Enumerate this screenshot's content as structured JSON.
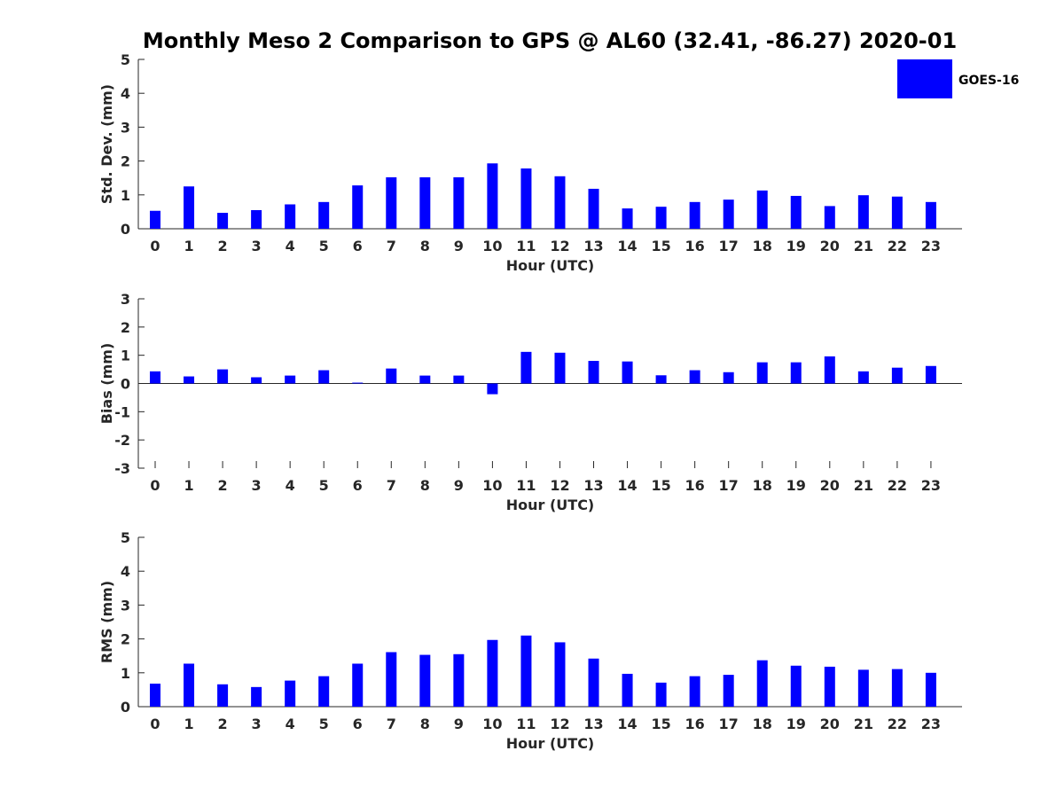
{
  "chart_data": {
    "title": "Monthly Meso 2 Comparison to GPS @ AL60 (32.41, -86.27) 2020-01",
    "legend": {
      "label": "GOES-16",
      "color": "#0000ff",
      "position": "top-right"
    },
    "panels": [
      {
        "type": "bar",
        "ylabel": "Std. Dev. (mm)",
        "xlabel": "Hour (UTC)",
        "ylim": [
          0,
          5
        ],
        "yticks": [
          0,
          1,
          2,
          3,
          4,
          5
        ],
        "categories": [
          "0",
          "1",
          "2",
          "3",
          "4",
          "5",
          "6",
          "7",
          "8",
          "9",
          "10",
          "11",
          "12",
          "13",
          "14",
          "15",
          "16",
          "17",
          "18",
          "19",
          "20",
          "21",
          "22",
          "23"
        ],
        "series": [
          {
            "name": "GOES-16",
            "values": [
              0.53,
              1.25,
              0.47,
              0.55,
              0.72,
              0.79,
              1.28,
              1.52,
              1.52,
              1.52,
              1.93,
              1.78,
              1.55,
              1.18,
              0.6,
              0.65,
              0.79,
              0.86,
              1.13,
              0.97,
              0.67,
              0.99,
              0.95,
              0.79
            ]
          }
        ],
        "color": "#0000ff",
        "grid": false
      },
      {
        "type": "bar",
        "ylabel": "Bias (mm)",
        "xlabel": "Hour (UTC)",
        "ylim": [
          -3,
          3
        ],
        "yticks": [
          -3,
          -2,
          -1,
          0,
          1,
          2,
          3
        ],
        "categories": [
          "0",
          "1",
          "2",
          "3",
          "4",
          "5",
          "6",
          "7",
          "8",
          "9",
          "10",
          "11",
          "12",
          "13",
          "14",
          "15",
          "16",
          "17",
          "18",
          "19",
          "20",
          "21",
          "22",
          "23"
        ],
        "series": [
          {
            "name": "GOES-16",
            "values": [
              0.43,
              0.25,
              0.5,
              0.22,
              0.28,
              0.47,
              0.03,
              0.53,
              0.28,
              0.28,
              -0.38,
              1.12,
              1.09,
              0.8,
              0.78,
              0.29,
              0.47,
              0.4,
              0.75,
              0.75,
              0.96,
              0.43,
              0.56,
              0.62
            ]
          }
        ],
        "color": "#0000ff",
        "grid": false
      },
      {
        "type": "bar",
        "ylabel": "RMS (mm)",
        "xlabel": "Hour (UTC)",
        "ylim": [
          0,
          5
        ],
        "yticks": [
          0,
          1,
          2,
          3,
          4,
          5
        ],
        "categories": [
          "0",
          "1",
          "2",
          "3",
          "4",
          "5",
          "6",
          "7",
          "8",
          "9",
          "10",
          "11",
          "12",
          "13",
          "14",
          "15",
          "16",
          "17",
          "18",
          "19",
          "20",
          "21",
          "22",
          "23"
        ],
        "series": [
          {
            "name": "GOES-16",
            "values": [
              0.68,
              1.27,
              0.66,
              0.58,
              0.77,
              0.9,
              1.27,
              1.61,
              1.53,
              1.55,
              1.97,
              2.1,
              1.9,
              1.42,
              0.97,
              0.71,
              0.9,
              0.94,
              1.37,
              1.21,
              1.18,
              1.09,
              1.11,
              1.0
            ]
          }
        ],
        "color": "#0000ff",
        "grid": false
      }
    ]
  }
}
